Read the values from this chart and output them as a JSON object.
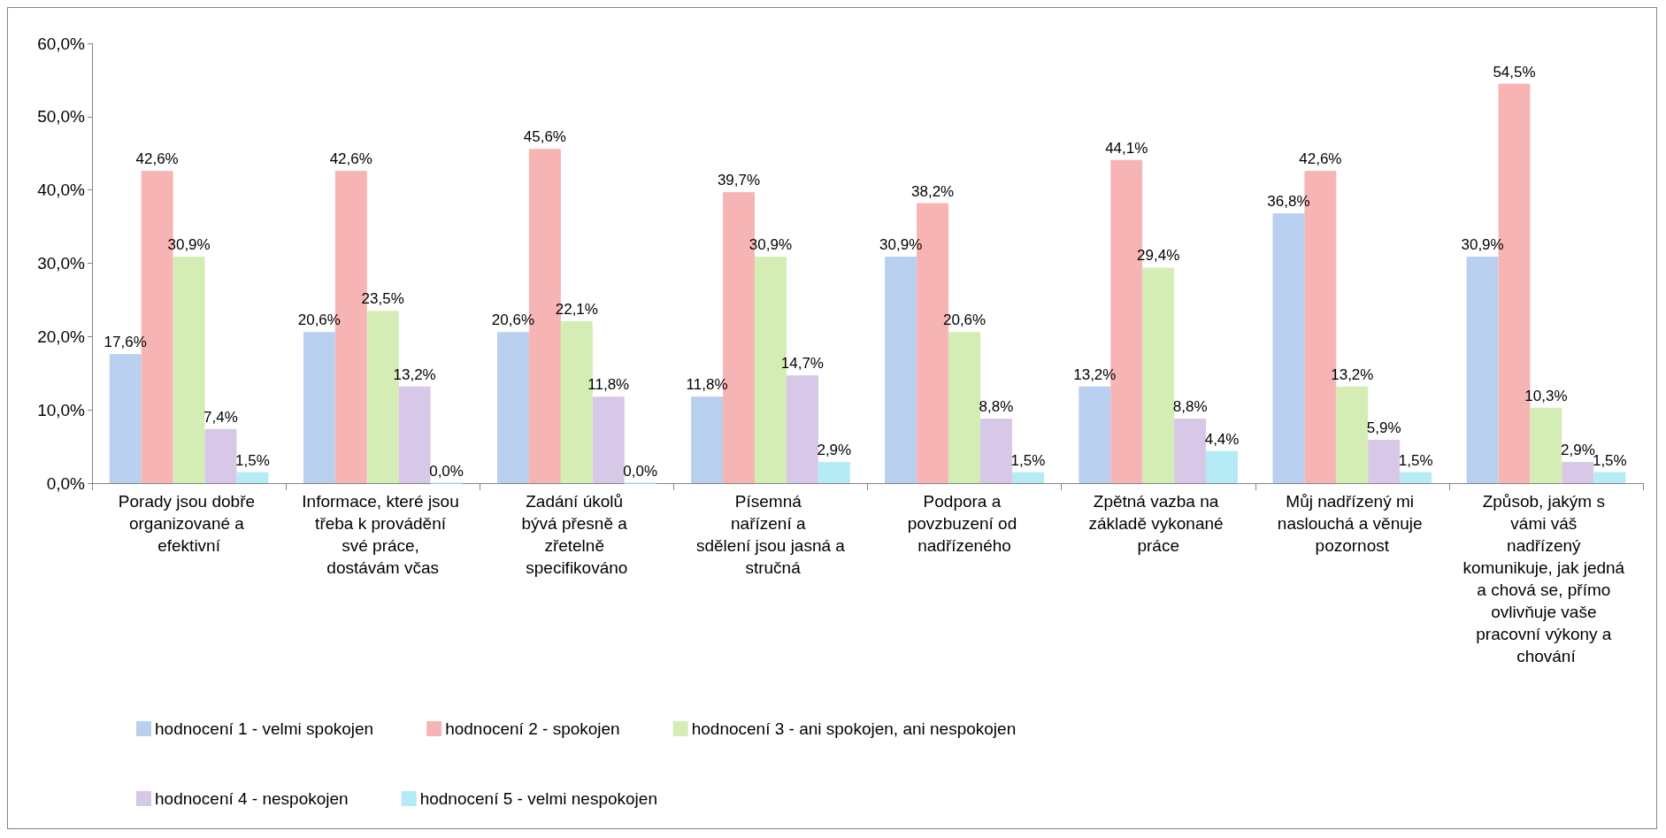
{
  "chart_data": {
    "type": "bar",
    "categories": [
      "Porady jsou dobře organizované a efektivní",
      "Informace, které jsou třeba k provádění své práce, dostávám včas",
      "Zadání úkolů bývá přesně a zřetelně specifikováno",
      "Písemná nařízení a sdělení jsou jasná a stručná",
      "Podpora a povzbuzení od nadřízeného",
      "Zpětná vazba na základě vykonané práce",
      "Můj nadřízený mi naslouchá a věnuje pozornost",
      "Způsob, jakým s vámi váš nadřízený komunikuje, jak jedná a chová se, přímo ovlivňuje vaše pracovní výkony a chování"
    ],
    "series": [
      {
        "name": "hodnocení 1 - velmi spokojen",
        "color": "#b9cff0",
        "values": [
          17.6,
          20.6,
          20.6,
          11.8,
          30.9,
          13.2,
          36.8,
          30.9
        ],
        "value_labels": [
          "17,6%",
          "20,6%",
          "20,6%",
          "11,8%",
          "30,9%",
          "13,2%",
          "36,8%",
          "30,9%"
        ]
      },
      {
        "name": "hodnocení 2 - spokojen",
        "color": "#f7b4b4",
        "values": [
          42.6,
          42.6,
          45.6,
          39.7,
          38.2,
          44.1,
          42.6,
          54.5
        ],
        "value_labels": [
          "42,6%",
          "42,6%",
          "45,6%",
          "39,7%",
          "38,2%",
          "44,1%",
          "42,6%",
          "54,5%"
        ]
      },
      {
        "name": "hodnocení 3 - ani spokojen, ani nespokojen",
        "color": "#d4edb4",
        "values": [
          30.9,
          23.5,
          22.1,
          30.9,
          20.6,
          29.4,
          13.2,
          10.3
        ],
        "value_labels": [
          "30,9%",
          "23,5%",
          "22,1%",
          "30,9%",
          "20,6%",
          "29,4%",
          "13,2%",
          "10,3%"
        ]
      },
      {
        "name": "hodnocení 4 - nespokojen",
        "color": "#d6c8e6",
        "values": [
          7.4,
          13.2,
          11.8,
          14.7,
          8.8,
          8.8,
          5.9,
          2.9
        ],
        "value_labels": [
          "7,4%",
          "13,2%",
          "11,8%",
          "14,7%",
          "8,8%",
          "8,8%",
          "5,9%",
          "2,9%"
        ]
      },
      {
        "name": "hodnocení 5 - velmi nespokojen",
        "color": "#b4ebf5",
        "values": [
          1.5,
          0,
          0,
          2.9,
          1.5,
          4.4,
          1.5,
          1.5
        ],
        "value_labels": [
          "1,5%",
          "0,0%",
          "0,0%",
          "2,9%",
          "1,5%",
          "4,4%",
          "1,5%",
          "1,5%"
        ]
      }
    ],
    "ylim": [
      0,
      60
    ],
    "yticks": [
      {
        "value": 0,
        "label": "0,0%"
      },
      {
        "value": 10,
        "label": "10,0%"
      },
      {
        "value": 20,
        "label": "20,0%"
      },
      {
        "value": 30,
        "label": "30,0%"
      },
      {
        "value": 40,
        "label": "40,0%"
      },
      {
        "value": 50,
        "label": "50,0%"
      },
      {
        "value": 60,
        "label": "60,0%"
      }
    ],
    "legend": "bottom"
  }
}
